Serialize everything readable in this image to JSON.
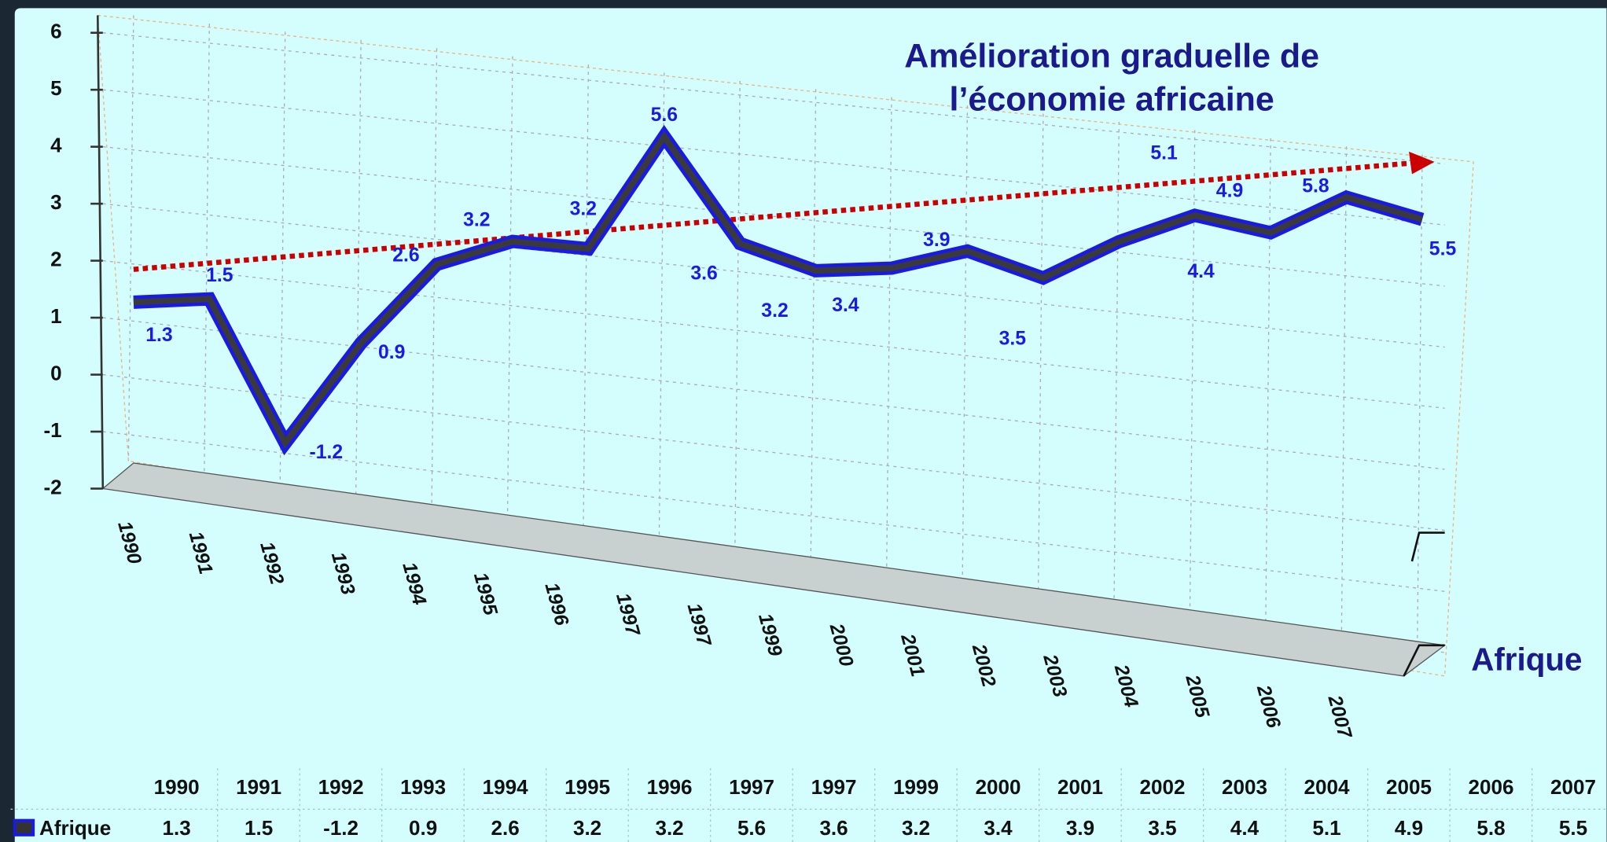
{
  "chart_data": {
    "type": "line",
    "title": [
      "Amélioration graduelle de",
      "l’économie africaine"
    ],
    "categories": [
      "1990",
      "1991",
      "1992",
      "1993",
      "1994",
      "1995",
      "1996",
      "1997",
      "1997",
      "1999",
      "2000",
      "2001",
      "2002",
      "2003",
      "2004",
      "2005",
      "2006",
      "2007"
    ],
    "series": [
      {
        "name": "Afrique",
        "color": "#1a1ae6",
        "values": [
          1.3,
          1.5,
          -1.2,
          0.9,
          2.6,
          3.2,
          3.2,
          5.6,
          3.6,
          3.2,
          3.4,
          3.9,
          3.5,
          4.4,
          5.1,
          4.9,
          5.8,
          5.5
        ]
      }
    ],
    "ylim": [
      -2,
      6
    ],
    "yticks": [
      -2,
      -1,
      0,
      1,
      2,
      3,
      4,
      5,
      6
    ],
    "grid": true,
    "data_table": true
  }
}
